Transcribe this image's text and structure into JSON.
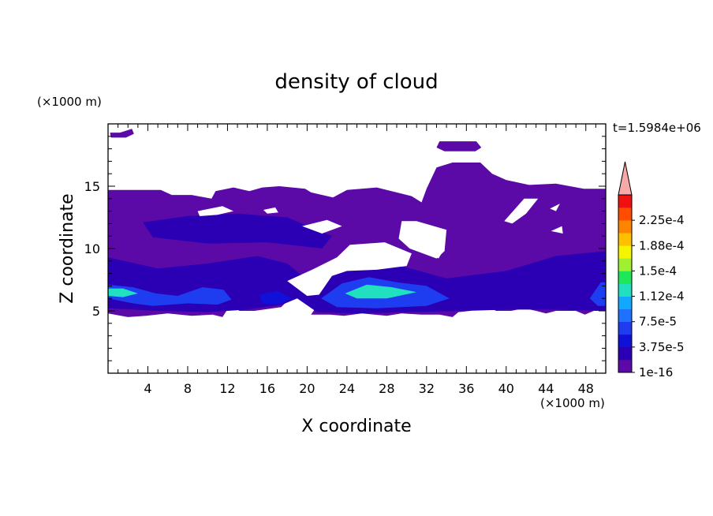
{
  "chart_data": {
    "type": "heatmap",
    "title": "density of cloud",
    "xlabel": "X coordinate",
    "ylabel": "Z coordinate",
    "x_unit": "(×1000 m)",
    "y_unit": "(×1000 m)",
    "time_label": "t=1.5984e+06",
    "xlim": [
      0,
      50
    ],
    "ylim": [
      0,
      20
    ],
    "x_ticks": [
      "4",
      "8",
      "12",
      "16",
      "20",
      "24",
      "28",
      "32",
      "36",
      "40",
      "44",
      "48"
    ],
    "x_tick_values": [
      4,
      8,
      12,
      16,
      20,
      24,
      28,
      32,
      36,
      40,
      44,
      48
    ],
    "y_ticks": [
      "5",
      "10",
      "15"
    ],
    "y_tick_values": [
      5,
      10,
      15
    ],
    "colorbar": {
      "levels": [
        1e-16,
        1.875e-05,
        3.75e-05,
        5.625e-05,
        7.5e-05,
        9.375e-05,
        0.0001125,
        0.00013125,
        0.00015,
        0.00016875,
        0.0001875,
        0.00020625,
        0.000225,
        0.00024375
      ],
      "labels": [
        "1e-16",
        "3.75e-5",
        "7.5e-5",
        "1.12e-4",
        "1.5e-4",
        "1.88e-4",
        "2.25e-4"
      ],
      "label_levels": [
        1e-16,
        3.75e-05,
        7.5e-05,
        0.0001125,
        0.00015,
        0.0001875,
        0.000225
      ],
      "colors": [
        "#5b0aa8",
        "#2b00b5",
        "#1010d8",
        "#1e3cf0",
        "#1f72ff",
        "#12a8ff",
        "#20e0c0",
        "#1ee85a",
        "#9ef030",
        "#f5f500",
        "#ffc000",
        "#ff8400",
        "#ff4d00",
        "#f01010"
      ],
      "overflow_color": "#f7a8a8"
    },
    "cloud_regions": [
      {
        "name": "main-layer",
        "level": 1e-16,
        "points": [
          [
            0,
            14.7
          ],
          [
            5.3,
            14.7
          ],
          [
            6.4,
            14.3
          ],
          [
            8.4,
            14.3
          ],
          [
            10.4,
            14.0
          ],
          [
            10.8,
            14.6
          ],
          [
            12.6,
            14.9
          ],
          [
            14.2,
            14.6
          ],
          [
            15.5,
            14.9
          ],
          [
            17.2,
            15.0
          ],
          [
            19.8,
            14.8
          ],
          [
            20.4,
            14.5
          ],
          [
            22.6,
            14.1
          ],
          [
            24.0,
            14.7
          ],
          [
            27.0,
            14.9
          ],
          [
            30.5,
            14.2
          ],
          [
            31.5,
            13.7
          ],
          [
            32.0,
            14.8
          ],
          [
            33.0,
            16.5
          ],
          [
            34.6,
            16.9
          ],
          [
            37.4,
            16.9
          ],
          [
            38.6,
            16.0
          ],
          [
            40.0,
            15.5
          ],
          [
            42.3,
            15.1
          ],
          [
            45.0,
            15.2
          ],
          [
            47.8,
            14.8
          ],
          [
            50,
            14.8
          ],
          [
            50,
            5.0
          ],
          [
            48.8,
            5.0
          ],
          [
            47.9,
            4.7
          ],
          [
            47.0,
            5.0
          ],
          [
            45.0,
            5.0
          ],
          [
            44.0,
            4.8
          ],
          [
            43.0,
            5.0
          ],
          [
            41.8,
            5.2
          ],
          [
            40.5,
            5.0
          ],
          [
            39.0,
            5.0
          ],
          [
            37.9,
            5.4
          ],
          [
            36.4,
            5.0
          ],
          [
            35.2,
            4.9
          ],
          [
            34.6,
            4.5
          ],
          [
            33.3,
            4.7
          ],
          [
            31.5,
            4.7
          ],
          [
            29.5,
            4.8
          ],
          [
            28.0,
            4.6
          ],
          [
            25.5,
            4.8
          ],
          [
            23.7,
            4.6
          ],
          [
            22.3,
            4.7
          ],
          [
            20.4,
            4.7
          ],
          [
            20.9,
            5.3
          ],
          [
            20.0,
            6.0
          ],
          [
            19.4,
            6.7
          ],
          [
            18.5,
            6.2
          ],
          [
            17.4,
            5.3
          ],
          [
            14.7,
            5.0
          ],
          [
            13.2,
            5.0
          ],
          [
            12.5,
            5.4
          ],
          [
            11.9,
            5.0
          ],
          [
            11.5,
            4.5
          ],
          [
            10.5,
            4.7
          ],
          [
            8.4,
            4.6
          ],
          [
            6.0,
            4.8
          ],
          [
            3.8,
            4.6
          ],
          [
            2.0,
            4.5
          ],
          [
            0,
            4.8
          ]
        ]
      },
      {
        "name": "top-fragment",
        "level": 1e-16,
        "points": [
          [
            33.3,
            18.6
          ],
          [
            37.0,
            18.6
          ],
          [
            37.5,
            18.1
          ],
          [
            36.9,
            17.8
          ],
          [
            33.8,
            17.8
          ],
          [
            33.0,
            18.1
          ]
        ]
      },
      {
        "name": "corner-fragment",
        "level": 1e-16,
        "points": [
          [
            0.2,
            19.3
          ],
          [
            1.2,
            19.3
          ],
          [
            2.4,
            19.6
          ],
          [
            2.6,
            19.2
          ],
          [
            1.8,
            18.9
          ],
          [
            0.3,
            18.9
          ]
        ]
      },
      {
        "name": "mid-layer",
        "level": 1.875e-05,
        "points": [
          [
            3.5,
            12.1
          ],
          [
            8.0,
            12.6
          ],
          [
            13.0,
            12.8
          ],
          [
            18.0,
            12.5
          ],
          [
            22.5,
            11.0
          ],
          [
            21.5,
            10.0
          ],
          [
            16.0,
            10.5
          ],
          [
            10.0,
            10.4
          ],
          [
            4.5,
            10.9
          ]
        ]
      },
      {
        "name": "low-band",
        "level": 1.875e-05,
        "points": [
          [
            0,
            9.3
          ],
          [
            5.0,
            8.4
          ],
          [
            10.0,
            8.8
          ],
          [
            15.0,
            9.4
          ],
          [
            18.0,
            8.8
          ],
          [
            20.0,
            7.5
          ],
          [
            24.0,
            8.5
          ],
          [
            29.0,
            8.7
          ],
          [
            34.0,
            7.6
          ],
          [
            40.0,
            8.2
          ],
          [
            45.0,
            9.4
          ],
          [
            50,
            9.8
          ],
          [
            50,
            5.0
          ],
          [
            45.0,
            5.1
          ],
          [
            40.0,
            5.1
          ],
          [
            36.0,
            5.0
          ],
          [
            30.0,
            4.9
          ],
          [
            25.0,
            4.8
          ],
          [
            21.0,
            4.9
          ],
          [
            19.0,
            6.0
          ],
          [
            17.5,
            5.5
          ],
          [
            14.0,
            5.1
          ],
          [
            10.0,
            4.9
          ],
          [
            5.0,
            5.0
          ],
          [
            0,
            5.2
          ]
        ]
      },
      {
        "name": "left-core",
        "level": 5.625e-05,
        "points": [
          [
            0,
            7.1
          ],
          [
            2.5,
            6.9
          ],
          [
            4.8,
            6.4
          ],
          [
            7.0,
            6.2
          ],
          [
            9.5,
            6.9
          ],
          [
            11.6,
            6.7
          ],
          [
            12.4,
            5.9
          ],
          [
            11.0,
            5.5
          ],
          [
            8.0,
            5.6
          ],
          [
            4.5,
            5.4
          ],
          [
            2.5,
            5.6
          ],
          [
            0,
            6.0
          ]
        ]
      },
      {
        "name": "left-core-inner",
        "level": 0.0001125,
        "points": [
          [
            0,
            6.8
          ],
          [
            1.5,
            6.8
          ],
          [
            3.0,
            6.4
          ],
          [
            1.5,
            6.1
          ],
          [
            0,
            6.2
          ]
        ]
      },
      {
        "name": "center-core",
        "level": 5.625e-05,
        "points": [
          [
            21.4,
            6.0
          ],
          [
            23.5,
            7.2
          ],
          [
            26.2,
            7.7
          ],
          [
            29.0,
            7.3
          ],
          [
            32.0,
            7.0
          ],
          [
            34.3,
            6.0
          ],
          [
            32.0,
            5.4
          ],
          [
            27.0,
            5.2
          ],
          [
            23.0,
            5.3
          ]
        ]
      },
      {
        "name": "center-core-inner",
        "level": 0.0001125,
        "points": [
          [
            23.8,
            6.4
          ],
          [
            26.0,
            7.1
          ],
          [
            28.5,
            6.9
          ],
          [
            31.0,
            6.5
          ],
          [
            28.0,
            6.0
          ],
          [
            25.0,
            6.0
          ]
        ]
      },
      {
        "name": "right-core",
        "level": 5.625e-05,
        "points": [
          [
            48.4,
            6.0
          ],
          [
            49.5,
            7.3
          ],
          [
            50,
            7.3
          ],
          [
            50,
            5.4
          ],
          [
            49.2,
            5.4
          ]
        ]
      },
      {
        "name": "small-core",
        "level": 3.75e-05,
        "points": [
          [
            15.2,
            6.3
          ],
          [
            17.0,
            6.6
          ],
          [
            18.5,
            6.0
          ],
          [
            17.0,
            5.5
          ],
          [
            15.5,
            5.6
          ]
        ]
      }
    ],
    "clear_regions": [
      {
        "name": "gap-upper-left",
        "points": [
          [
            9.0,
            13.0
          ],
          [
            11.5,
            13.4
          ],
          [
            12.6,
            13.0
          ],
          [
            11.0,
            12.7
          ],
          [
            9.2,
            12.6
          ]
        ]
      },
      {
        "name": "gap-upper-mid",
        "points": [
          [
            19.5,
            11.8
          ],
          [
            22.0,
            12.3
          ],
          [
            23.5,
            11.8
          ],
          [
            21.5,
            11.2
          ]
        ]
      },
      {
        "name": "gap-center",
        "points": [
          [
            18.0,
            7.4
          ],
          [
            20.5,
            8.3
          ],
          [
            23.0,
            9.3
          ],
          [
            24.3,
            10.3
          ],
          [
            27.8,
            10.5
          ],
          [
            30.5,
            9.6
          ],
          [
            30.0,
            8.6
          ],
          [
            27.0,
            8.3
          ],
          [
            24.0,
            8.2
          ],
          [
            22.5,
            7.8
          ],
          [
            21.2,
            6.3
          ],
          [
            20.0,
            6.2
          ]
        ]
      },
      {
        "name": "gap-upper-right",
        "points": [
          [
            29.5,
            12.2
          ],
          [
            31.0,
            12.2
          ],
          [
            34.0,
            11.5
          ],
          [
            33.8,
            9.8
          ],
          [
            33.0,
            9.2
          ],
          [
            30.3,
            10.0
          ],
          [
            29.2,
            10.8
          ]
        ]
      },
      {
        "name": "gap-right-1",
        "points": [
          [
            39.8,
            12.2
          ],
          [
            41.8,
            14.0
          ],
          [
            43.2,
            14.0
          ],
          [
            42.0,
            12.8
          ],
          [
            40.6,
            12.0
          ]
        ]
      },
      {
        "name": "gap-right-2",
        "points": [
          [
            44.4,
            13.2
          ],
          [
            45.4,
            13.6
          ],
          [
            45.0,
            13.0
          ]
        ]
      },
      {
        "name": "gap-right-3",
        "points": [
          [
            44.5,
            11.4
          ],
          [
            45.6,
            11.8
          ],
          [
            45.7,
            11.2
          ]
        ]
      },
      {
        "name": "gap-left-hole",
        "points": [
          [
            15.6,
            13.1
          ],
          [
            16.8,
            13.3
          ],
          [
            17.1,
            12.9
          ],
          [
            16.0,
            12.8
          ]
        ]
      },
      {
        "name": "gap-mid-1",
        "points": [
          [
            32.4,
            9.6
          ],
          [
            33.5,
            9.6
          ],
          [
            33.2,
            9.2
          ]
        ]
      }
    ],
    "grid": false,
    "legend": "colorbar-right"
  }
}
